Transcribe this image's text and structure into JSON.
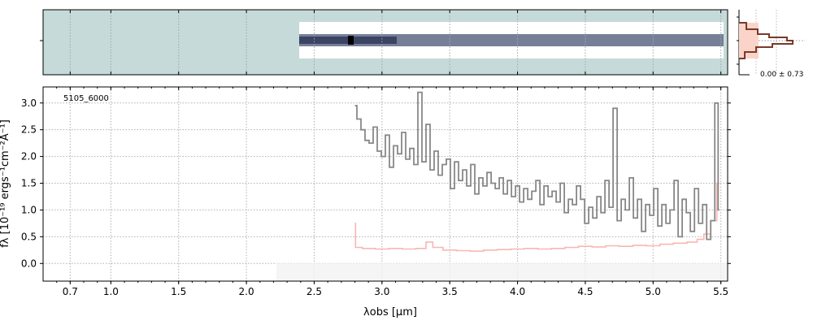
{
  "chart_data": {
    "type": "line",
    "panel_label": "5105_6000",
    "xlabel": "λobs [μm]",
    "ylabel": "fλ [10⁻¹⁹ ergs⁻¹cm⁻²Å⁻¹]",
    "xlim": [
      0.5,
      5.55
    ],
    "ylim": [
      -0.33,
      3.3
    ],
    "x_ticks": [
      {
        "label": "0.7",
        "value": 0.7
      },
      {
        "label": "1.0",
        "value": 1.0
      },
      {
        "label": "1.5",
        "value": 1.5
      },
      {
        "label": "2.0",
        "value": 2.0
      },
      {
        "label": "2.5",
        "value": 2.5
      },
      {
        "label": "3.0",
        "value": 3.0
      },
      {
        "label": "3.5",
        "value": 3.5
      },
      {
        "label": "4.0",
        "value": 4.0
      },
      {
        "label": "4.5",
        "value": 4.5
      },
      {
        "label": "5.0",
        "value": 5.0
      },
      {
        "label": "5.5",
        "value": 5.5
      }
    ],
    "y_ticks": [
      {
        "label": "0.0",
        "value": 0.0
      },
      {
        "label": "0.5",
        "value": 0.5
      },
      {
        "label": "1.0",
        "value": 1.0
      },
      {
        "label": "1.5",
        "value": 1.5
      },
      {
        "label": "2.0",
        "value": 2.0
      },
      {
        "label": "2.5",
        "value": 2.5
      },
      {
        "label": "3.0",
        "value": 3.0
      }
    ],
    "grid": true,
    "series": [
      {
        "name": "",
        "color": "#888888",
        "x": [
          2.8,
          2.83,
          2.86,
          2.89,
          2.92,
          2.95,
          2.98,
          3.01,
          3.04,
          3.07,
          3.1,
          3.13,
          3.16,
          3.19,
          3.22,
          3.25,
          3.28,
          3.31,
          3.34,
          3.37,
          3.4,
          3.43,
          3.46,
          3.49,
          3.52,
          3.55,
          3.58,
          3.61,
          3.64,
          3.67,
          3.7,
          3.73,
          3.76,
          3.79,
          3.82,
          3.85,
          3.88,
          3.91,
          3.94,
          3.97,
          4.0,
          4.03,
          4.06,
          4.09,
          4.12,
          4.15,
          4.18,
          4.21,
          4.24,
          4.27,
          4.3,
          4.33,
          4.36,
          4.39,
          4.42,
          4.45,
          4.48,
          4.51,
          4.54,
          4.57,
          4.6,
          4.63,
          4.66,
          4.69,
          4.72,
          4.75,
          4.78,
          4.81,
          4.84,
          4.87,
          4.9,
          4.93,
          4.96,
          4.99,
          5.02,
          5.05,
          5.08,
          5.11,
          5.14,
          5.17,
          5.2,
          5.23,
          5.26,
          5.29,
          5.32,
          5.35,
          5.38,
          5.41,
          5.44,
          5.47,
          5.49
        ],
        "y": [
          2.95,
          2.7,
          2.5,
          2.3,
          2.25,
          2.55,
          2.1,
          2.0,
          2.4,
          1.8,
          2.2,
          2.05,
          2.45,
          1.95,
          2.15,
          1.85,
          3.2,
          1.9,
          2.6,
          1.75,
          2.1,
          1.65,
          1.85,
          1.95,
          1.4,
          1.9,
          1.55,
          1.75,
          1.45,
          1.85,
          1.3,
          1.6,
          1.45,
          1.7,
          1.5,
          1.4,
          1.6,
          1.3,
          1.55,
          1.25,
          1.45,
          1.15,
          1.4,
          1.2,
          1.35,
          1.55,
          1.1,
          1.45,
          1.25,
          1.35,
          1.15,
          1.5,
          0.95,
          1.2,
          1.1,
          1.45,
          1.2,
          0.75,
          1.05,
          0.85,
          1.25,
          0.95,
          1.55,
          1.05,
          2.9,
          0.8,
          1.2,
          1.0,
          1.6,
          0.85,
          1.2,
          0.6,
          1.1,
          0.9,
          1.4,
          0.7,
          1.1,
          0.75,
          1.0,
          1.55,
          0.5,
          1.2,
          0.95,
          0.6,
          1.4,
          0.75,
          1.1,
          0.45,
          0.8,
          3.0,
          1.0
        ],
        "style": "steps-mid"
      },
      {
        "name": "",
        "color": "#f7b7b3",
        "x": [
          2.8,
          2.81,
          2.9,
          3.0,
          3.1,
          3.2,
          3.3,
          3.35,
          3.4,
          3.5,
          3.6,
          3.7,
          3.8,
          3.9,
          4.0,
          4.1,
          4.2,
          4.3,
          4.4,
          4.5,
          4.6,
          4.7,
          4.8,
          4.9,
          5.0,
          5.1,
          5.2,
          5.3,
          5.35,
          5.4,
          5.45,
          5.49
        ],
        "y": [
          0.75,
          0.3,
          0.28,
          0.27,
          0.28,
          0.27,
          0.28,
          0.4,
          0.3,
          0.25,
          0.24,
          0.23,
          0.25,
          0.26,
          0.27,
          0.28,
          0.27,
          0.28,
          0.3,
          0.32,
          0.31,
          0.33,
          0.32,
          0.34,
          0.33,
          0.36,
          0.38,
          0.4,
          0.45,
          0.55,
          0.8,
          1.5
        ],
        "style": "steps-mid"
      }
    ],
    "side_panel": {
      "label": "0.00 ± 0.73"
    }
  },
  "colors": {
    "spectrum": "#888888",
    "error": "#f7b7b3",
    "image_bg": "#c5dad9",
    "profile_fill": "#fbd4c9",
    "profile_line": "#7a3a2a"
  }
}
